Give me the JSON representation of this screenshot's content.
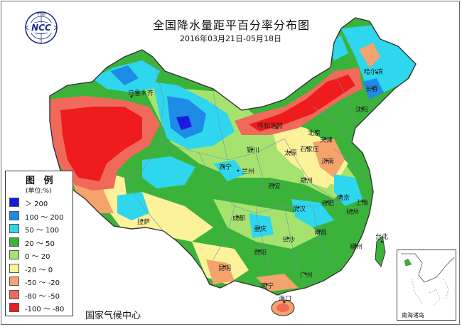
{
  "header": {
    "title": "全国降水量距平百分率分布图",
    "date_range": "2016年03月21日-05月18日"
  },
  "logo": {
    "text": "NCC",
    "ring_text": "中 国"
  },
  "footer": {
    "organization": "国家气候中心"
  },
  "legend": {
    "title": "图 例",
    "unit": "(单位:%)",
    "items": [
      {
        "label": "＞ 200",
        "color": "#1a1ae0"
      },
      {
        "label": "100 ～ 200",
        "color": "#1e8be6"
      },
      {
        "label": "50 ～ 100",
        "color": "#2ed7ee"
      },
      {
        "label": "20 ～ 50",
        "color": "#3bb33b"
      },
      {
        "label": "0 ～ 20",
        "color": "#a6e36e"
      },
      {
        "label": "-20 ～ 0",
        "color": "#fbf29a"
      },
      {
        "label": "-50 ～ -20",
        "color": "#f4a36c"
      },
      {
        "label": "-80 ～ -50",
        "color": "#f06a5c"
      },
      {
        "label": "-100 ～ -80",
        "color": "#ee1c1c"
      }
    ]
  },
  "inset": {
    "label": "南海诸岛"
  },
  "cities": [
    {
      "name": "乌鲁木齐"
    },
    {
      "name": "哈尔滨"
    },
    {
      "name": "长春"
    },
    {
      "name": "沈阳"
    },
    {
      "name": "呼和浩特"
    },
    {
      "name": "北京"
    },
    {
      "name": "天津"
    },
    {
      "name": "太原"
    },
    {
      "name": "石家庄"
    },
    {
      "name": "济南"
    },
    {
      "name": "银川"
    },
    {
      "name": "西宁"
    },
    {
      "name": "兰州"
    },
    {
      "name": "郑州"
    },
    {
      "name": "西安"
    },
    {
      "name": "合肥"
    },
    {
      "name": "南京"
    },
    {
      "name": "上海"
    },
    {
      "name": "杭州"
    },
    {
      "name": "武汉"
    },
    {
      "name": "成都"
    },
    {
      "name": "重庆"
    },
    {
      "name": "拉萨"
    },
    {
      "name": "长沙"
    },
    {
      "name": "南昌"
    },
    {
      "name": "贵阳"
    },
    {
      "name": "福州"
    },
    {
      "name": "台北"
    },
    {
      "name": "昆明"
    },
    {
      "name": "南宁"
    },
    {
      "name": "广州"
    },
    {
      "name": "海口"
    }
  ]
}
